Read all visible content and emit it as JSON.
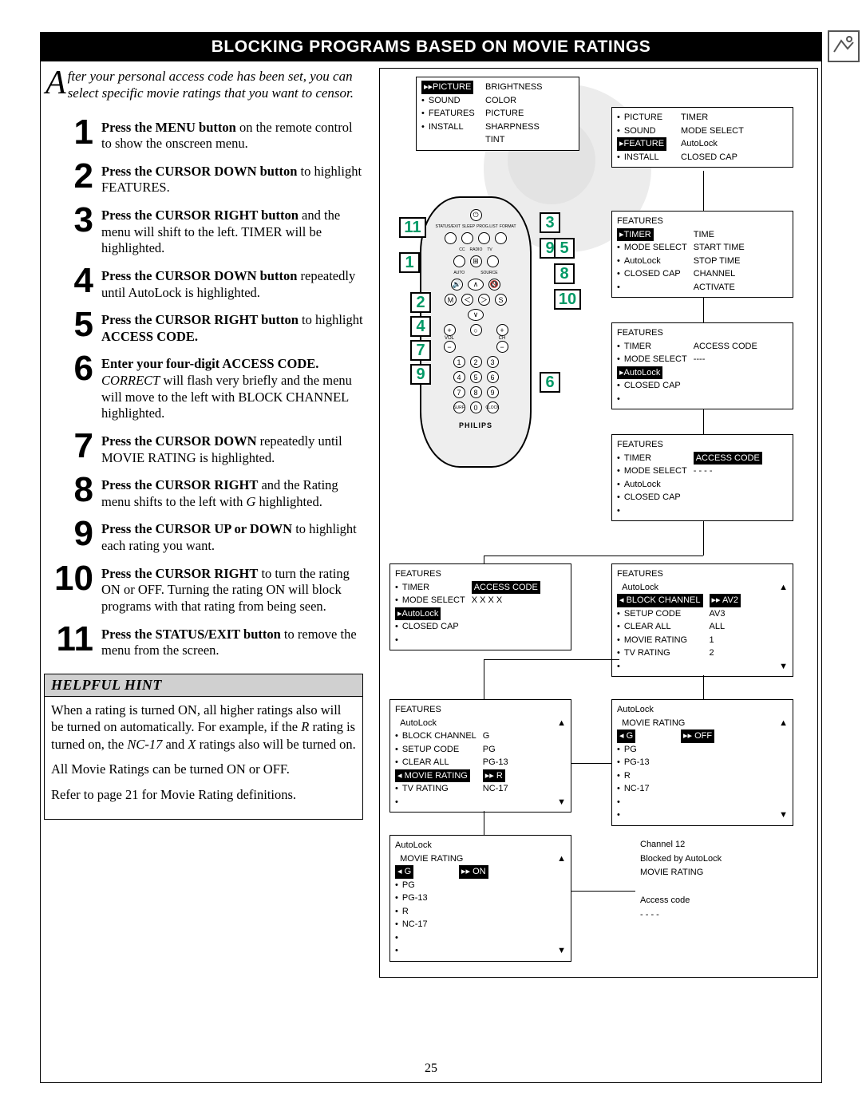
{
  "title": "BLOCKING PROGRAMS BASED ON MOVIE RATINGS",
  "intro": {
    "rest": "fter your personal access code has been set, you can select specific movie ratings that you want to censor."
  },
  "steps": [
    {
      "n": "1",
      "text": "<b>Press the MENU button</b> on the remote control to show the onscreen menu."
    },
    {
      "n": "2",
      "text": "<b>Press the CURSOR DOWN button</b> to highlight FEATURES."
    },
    {
      "n": "3",
      "text": "<b>Press the CURSOR RIGHT button</b> and the menu will shift to the left. TIMER will be highlighted."
    },
    {
      "n": "4",
      "text": "<b>Press the CURSOR DOWN button</b> repeatedly until AutoLock is highlighted."
    },
    {
      "n": "5",
      "text": "<b>Press the CURSOR RIGHT button</b> to highlight <b>ACCESS CODE.</b>"
    },
    {
      "n": "6",
      "text": "<b>Enter your four-digit ACCESS CODE.</b> <i>CORRECT</i> will flash very briefly and the menu will move to the left with BLOCK CHANNEL highlighted."
    },
    {
      "n": "7",
      "text": "<b>Press the CURSOR DOWN</b> repeatedly until MOVIE RATING is highlighted."
    },
    {
      "n": "8",
      "text": "<b>Press the CURSOR RIGHT</b> and the Rating menu shifts to the left with <i>G</i> highlighted."
    },
    {
      "n": "9",
      "text": "<b>Press the CURSOR UP or DOWN</b> to highlight each rating you want."
    },
    {
      "n": "10",
      "text": "<b>Press the CURSOR RIGHT</b> to turn the rating ON or OFF.  Turning the rating ON will block programs with that rating from being seen."
    },
    {
      "n": "11",
      "text": "<b>Press the STATUS/EXIT button</b> to remove the menu from the screen."
    }
  ],
  "hint": {
    "title": "HELPFUL HINT",
    "body": [
      "When a rating is turned ON, all higher ratings also will be turned on automatically.  For example, if the <i>R</i> rating is turned on, the <i>NC-17</i> and <i>X</i> ratings also will be turned on.",
      "All Movie Ratings can be turned ON or OFF.",
      "Refer to page 21 for Movie Rating definitions."
    ]
  },
  "menus": {
    "m1": {
      "left": [
        "PICTURE",
        "SOUND",
        "FEATURES",
        "INSTALL"
      ],
      "right": [
        "BRIGHTNESS",
        "COLOR",
        "PICTURE",
        "SHARPNESS",
        "TINT"
      ],
      "hl": 0
    },
    "m2": {
      "left": [
        "PICTURE",
        "SOUND",
        "FEATURE",
        "INSTALL"
      ],
      "right": [
        "TIMER",
        "MODE SELECT",
        "AutoLock",
        "CLOSED CAP"
      ],
      "hl": 2
    },
    "m3": {
      "title": "FEATURES",
      "left": [
        "TIMER",
        "MODE SELECT",
        "AutoLock",
        "CLOSED CAP",
        ""
      ],
      "right": [
        "TIME",
        "START TIME",
        "STOP TIME",
        "CHANNEL",
        "ACTIVATE"
      ],
      "hl": 0
    },
    "m4": {
      "title": "FEATURES",
      "left": [
        "TIMER",
        "MODE SELECT",
        "AutoLock",
        "CLOSED CAP",
        ""
      ],
      "right": [
        "ACCESS CODE",
        "----",
        "",
        "",
        ""
      ],
      "hl": 2
    },
    "m5": {
      "title": "FEATURES",
      "left": [
        "TIMER",
        "MODE SELECT",
        "AutoLock",
        "CLOSED CAP",
        ""
      ],
      "right": [
        "ACCESS CODE",
        "- - - -",
        "",
        "",
        ""
      ],
      "hlr": 0
    },
    "m6": {
      "title": "FEATURES",
      "left": [
        "TIMER",
        "MODE SELECT",
        "AutoLock",
        "CLOSED CAP",
        ""
      ],
      "right": [
        "ACCESS CODE",
        "X X X X",
        "",
        "",
        ""
      ],
      "hl": 2,
      "hlr": 0
    },
    "m7": {
      "title": "FEATURES",
      "sub": "AutoLock",
      "left": [
        "BLOCK CHANNEL",
        "SETUP CODE",
        "CLEAR ALL",
        "MOVIE RATING",
        "TV RATING"
      ],
      "right": [
        "AV2",
        "AV3",
        "ALL",
        "1",
        "2"
      ],
      "hl": 0,
      "arrows": true
    },
    "m8": {
      "title": "FEATURES",
      "sub": "AutoLock",
      "left": [
        "BLOCK CHANNEL",
        "SETUP CODE",
        "CLEAR ALL",
        "MOVIE RATING",
        "TV RATING"
      ],
      "right": [
        "G",
        "PG",
        "PG-13",
        "R",
        "NC-17"
      ],
      "hl": 3,
      "arrows": true
    },
    "m9": {
      "title": "AutoLock",
      "sub": "MOVIE RATING",
      "left": [
        "G",
        "PG",
        "PG-13",
        "R",
        "NC-17",
        ""
      ],
      "right": [
        "OFF",
        "",
        "",
        "",
        "",
        ""
      ],
      "hl": 0,
      "arrows": true
    },
    "m10": {
      "title": "AutoLock",
      "sub": "MOVIE RATING",
      "left": [
        "G",
        "PG",
        "PG-13",
        "R",
        "NC-17",
        ""
      ],
      "right": [
        "ON",
        "",
        "",
        "",
        "",
        ""
      ],
      "hl": 0,
      "arrows": true
    },
    "m11": {
      "lines": [
        "Channel 12",
        "Blocked by AutoLock",
        "MOVIE RATING",
        "",
        "Access code",
        "- - - -"
      ]
    }
  },
  "remote_brand": "PHILIPS",
  "callouts": [
    "1",
    "2",
    "3",
    "4",
    "5",
    "6",
    "7",
    "8",
    "9",
    "10",
    "11"
  ],
  "page_num": "25"
}
